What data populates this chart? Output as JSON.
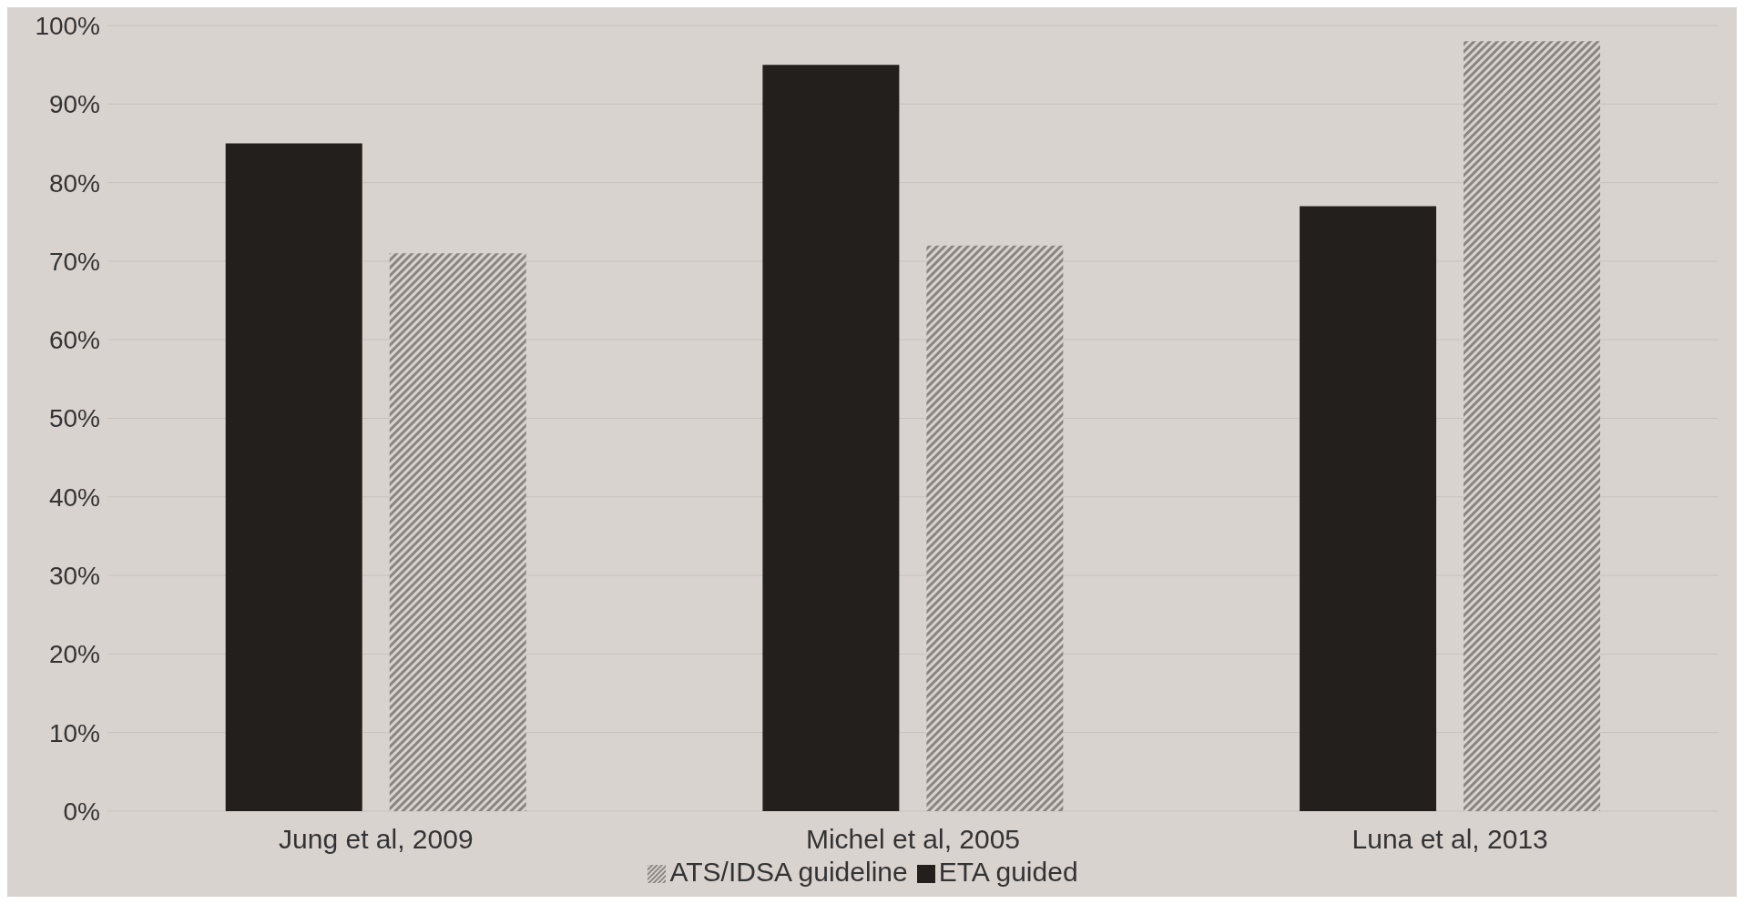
{
  "chart_data": {
    "type": "bar",
    "categories": [
      "Jung et al, 2009",
      "Michel et al, 2005",
      "Luna et al, 2013"
    ],
    "series": [
      {
        "name": "ETA guided",
        "color": "#231f1c",
        "values": [
          85,
          95,
          77
        ]
      },
      {
        "name": "ATS/IDSA guideline",
        "color": "#8a8581",
        "values": [
          71,
          72,
          98
        ]
      }
    ],
    "ylim": [
      0,
      100
    ],
    "yticks": [
      {
        "value": 0,
        "label": "0%"
      },
      {
        "value": 10,
        "label": "10%"
      },
      {
        "value": 20,
        "label": "20%"
      },
      {
        "value": 30,
        "label": "30%"
      },
      {
        "value": 40,
        "label": "40%"
      },
      {
        "value": 50,
        "label": "50%"
      },
      {
        "value": 60,
        "label": "60%"
      },
      {
        "value": 70,
        "label": "70%"
      },
      {
        "value": 80,
        "label": "80%"
      },
      {
        "value": 90,
        "label": "90%"
      },
      {
        "value": 100,
        "label": "100%"
      }
    ],
    "grid": "y",
    "legend": "bottom"
  }
}
